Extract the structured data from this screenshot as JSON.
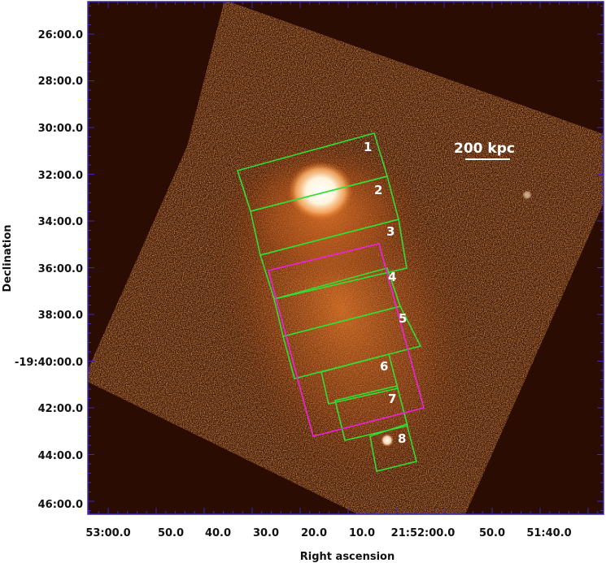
{
  "axes": {
    "xlabel": "Right ascension",
    "ylabel": "Declination",
    "x_ticks": [
      "53:00.0",
      "50.0",
      "40.0",
      "30.0",
      "20.0",
      "10.0",
      "21:52:00.0",
      "50.0",
      "51:40.0"
    ],
    "y_ticks": [
      "26:00.0",
      "28:00.0",
      "30:00.0",
      "32:00.0",
      "34:00.0",
      "36:00.0",
      "38:00.0",
      "-19:40:00.0",
      "42:00.0",
      "44:00.0",
      "46:00.0"
    ]
  },
  "scale_bar": {
    "label": "200 kpc"
  },
  "regions": {
    "green_labels": [
      "1",
      "2",
      "3",
      "4",
      "5",
      "6",
      "7",
      "8"
    ]
  },
  "colors": {
    "background": "#2a0c02",
    "emission": "#d2691e",
    "green_region": "#33dd33",
    "magenta_region": "#ee22dd",
    "frame": "#3a2ab8"
  }
}
